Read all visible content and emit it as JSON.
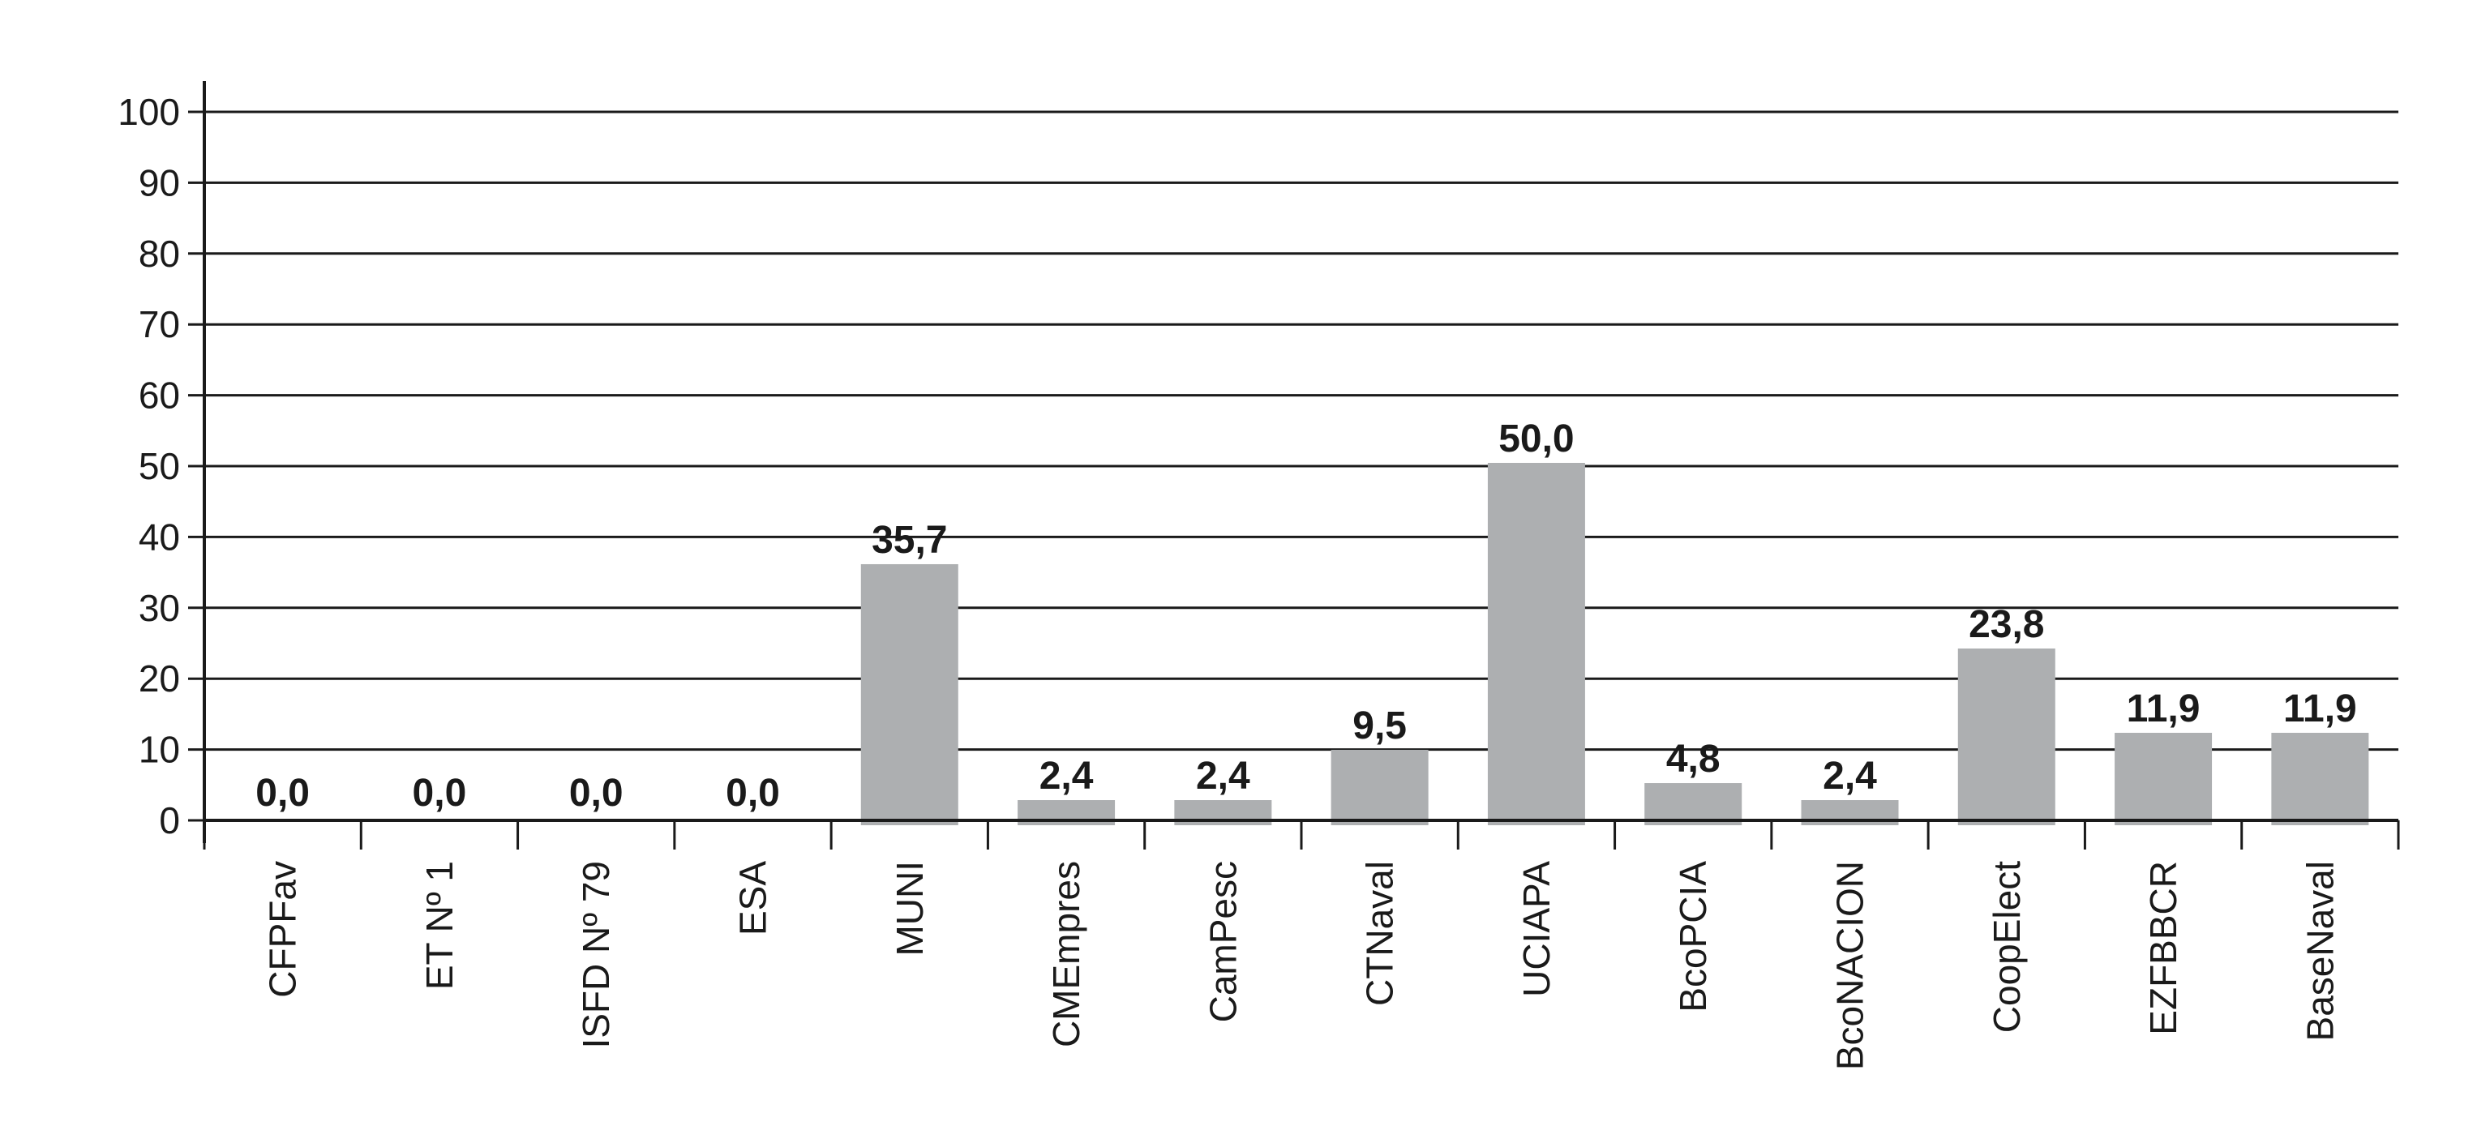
{
  "chart_data": {
    "type": "bar",
    "title": "",
    "xlabel": "",
    "ylabel": "",
    "categories": [
      "CFPFav",
      "ET Nº 1",
      "ISFD Nº 79",
      "ESA",
      "MUNI",
      "CMEmpres",
      "CamPesc",
      "CTNaval",
      "UCIAPA",
      "BcoPCIA",
      "BcoNACION",
      "CoopElect",
      "EZFBBCR",
      "BaseNaval"
    ],
    "values": [
      0.0,
      0.0,
      0.0,
      0.0,
      35.7,
      2.4,
      2.4,
      9.5,
      50.0,
      4.8,
      2.4,
      23.8,
      11.9,
      11.9
    ],
    "value_labels": [
      "0,0",
      "0,0",
      "0,0",
      "0,0",
      "35,7",
      "2,4",
      "2,4",
      "9,5",
      "50,0",
      "4,8",
      "2,4",
      "23,8",
      "11,9",
      "11,9"
    ],
    "ylim": [
      0,
      100
    ],
    "yticks": [
      "0",
      "10",
      "20",
      "30",
      "40",
      "50",
      "60",
      "70",
      "80",
      "90",
      "100"
    ],
    "grid": true,
    "legend": "none",
    "x_tick_rotation": "vertical",
    "colors": {
      "bar": "#adafb1",
      "grid": "#1a1a1a",
      "text": "#1a1a1a"
    }
  }
}
